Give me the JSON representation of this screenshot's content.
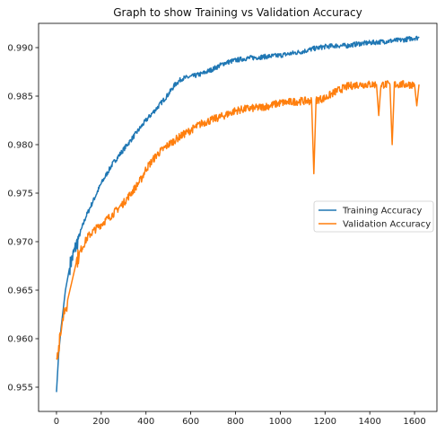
{
  "chart_data": {
    "type": "line",
    "title": "Graph to show Training vs Validation Accuracy",
    "xlabel": "",
    "ylabel": "",
    "xlim": [
      -80,
      1700
    ],
    "ylim": [
      0.9525,
      0.9925
    ],
    "x_ticks": [
      0,
      200,
      400,
      600,
      800,
      1000,
      1200,
      1400,
      1600
    ],
    "y_ticks": [
      0.955,
      0.96,
      0.965,
      0.97,
      0.975,
      0.98,
      0.985,
      0.99
    ],
    "x_tick_labels": [
      "0",
      "200",
      "400",
      "600",
      "800",
      "1000",
      "1200",
      "1400",
      "1600"
    ],
    "y_tick_labels": [
      "0.955",
      "0.960",
      "0.965",
      "0.970",
      "0.975",
      "0.980",
      "0.985",
      "0.990"
    ],
    "grid": false,
    "legend_position": "center-right",
    "series": [
      {
        "name": "Training Accuracy",
        "color": "#1f77b4",
        "x": [
          0,
          10,
          20,
          40,
          60,
          80,
          100,
          130,
          160,
          200,
          250,
          300,
          350,
          400,
          450,
          500,
          530,
          560,
          600,
          650,
          700,
          750,
          800,
          850,
          900,
          950,
          1000,
          1050,
          1100,
          1150,
          1200,
          1250,
          1300,
          1350,
          1400,
          1450,
          1500,
          1550,
          1600,
          1620
        ],
        "y": [
          0.9545,
          0.9585,
          0.961,
          0.965,
          0.9675,
          0.969,
          0.9705,
          0.9725,
          0.974,
          0.976,
          0.978,
          0.9795,
          0.981,
          0.9825,
          0.9838,
          0.9852,
          0.9862,
          0.9868,
          0.987,
          0.9873,
          0.9878,
          0.9884,
          0.9887,
          0.9889,
          0.989,
          0.9891,
          0.9892,
          0.9894,
          0.9896,
          0.9899,
          0.9901,
          0.9902,
          0.9902,
          0.9904,
          0.9905,
          0.9906,
          0.9907,
          0.9908,
          0.991,
          0.991
        ]
      },
      {
        "name": "Validation Accuracy",
        "color": "#ff7f0e",
        "x": [
          0,
          10,
          20,
          30,
          50,
          70,
          90,
          110,
          140,
          170,
          200,
          250,
          300,
          350,
          380,
          400,
          450,
          500,
          550,
          600,
          650,
          700,
          750,
          800,
          850,
          900,
          950,
          1000,
          1050,
          1100,
          1140,
          1150,
          1160,
          1200,
          1250,
          1300,
          1350,
          1400,
          1430,
          1440,
          1450,
          1490,
          1500,
          1510,
          1550,
          1600,
          1610,
          1620
        ],
        "y": [
          0.9585,
          0.959,
          0.9605,
          0.9625,
          0.964,
          0.966,
          0.968,
          0.9692,
          0.9705,
          0.9712,
          0.9718,
          0.9728,
          0.974,
          0.9755,
          0.9765,
          0.9775,
          0.979,
          0.98,
          0.9808,
          0.9815,
          0.9822,
          0.9826,
          0.983,
          0.9835,
          0.9837,
          0.9838,
          0.984,
          0.9843,
          0.9844,
          0.9845,
          0.9845,
          0.977,
          0.9846,
          0.9848,
          0.9855,
          0.986,
          0.9862,
          0.9862,
          0.9862,
          0.983,
          0.9862,
          0.9862,
          0.98,
          0.9862,
          0.9862,
          0.9862,
          0.984,
          0.9862
        ]
      }
    ]
  }
}
